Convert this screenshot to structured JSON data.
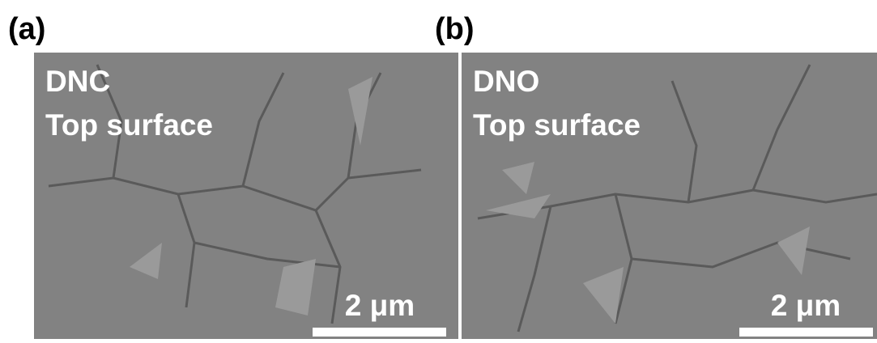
{
  "panels": [
    {
      "label": "(a)",
      "sample": "DNC",
      "description": "Top surface",
      "scale_bar": "2 μm"
    },
    {
      "label": "(b)",
      "sample": "DNO",
      "description": "Top surface",
      "scale_bar": "2 μm"
    }
  ]
}
